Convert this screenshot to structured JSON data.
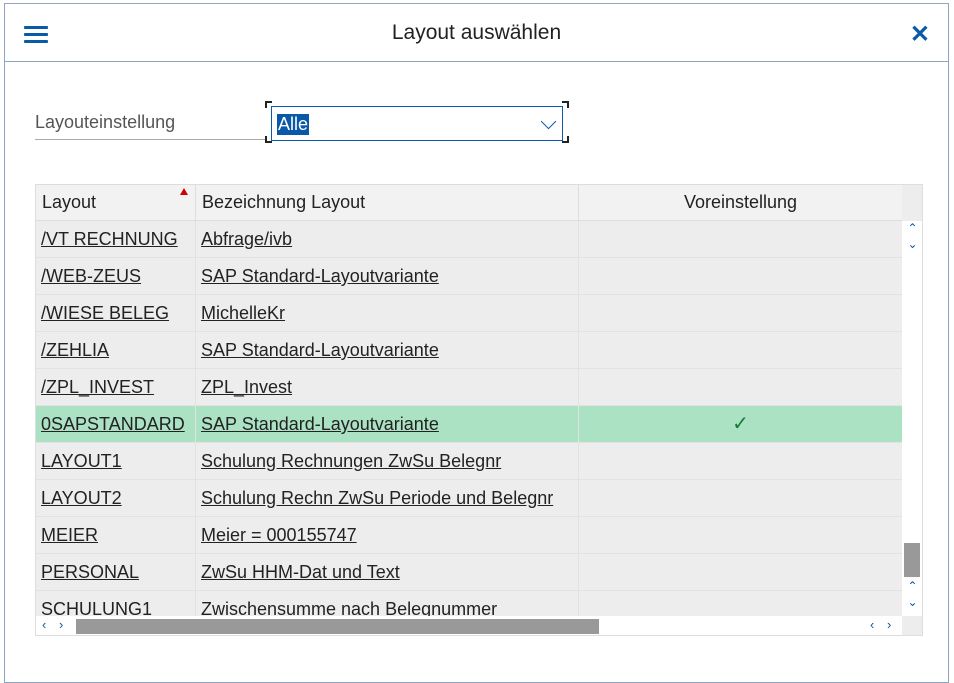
{
  "dialog": {
    "title": "Layout auswählen",
    "menu_icon": "hamburger-icon",
    "close_icon": "close-icon",
    "close_label": "✕"
  },
  "filter": {
    "label": "Layouteinstellung",
    "value": "Alle"
  },
  "table": {
    "columns": [
      "Layout",
      "Bezeichnung Layout",
      "Voreinstellung"
    ],
    "sort": {
      "column": "Layout",
      "direction": "ascending"
    },
    "rows": [
      {
        "layout": "/VT RECHNUNG",
        "name": "Abfrage/ivb",
        "default": ""
      },
      {
        "layout": "/WEB-ZEUS",
        "name": "SAP Standard-Layoutvariante",
        "default": ""
      },
      {
        "layout": "/WIESE BELEG",
        "name": "MichelleKr",
        "default": ""
      },
      {
        "layout": "/ZEHLIA",
        "name": "SAP Standard-Layoutvariante",
        "default": ""
      },
      {
        "layout": "/ZPL_INVEST",
        "name": "ZPL_Invest",
        "default": ""
      },
      {
        "layout": "0SAPSTANDARD",
        "name": "SAP Standard-Layoutvariante",
        "default": "✓",
        "selected": true
      },
      {
        "layout": "LAYOUT1",
        "name": "Schulung Rechnungen ZwSu Belegnr",
        "default": ""
      },
      {
        "layout": "LAYOUT2",
        "name": "Schulung Rechn ZwSu Periode und Belegnr",
        "default": ""
      },
      {
        "layout": "MEIER",
        "name": "Meier = 000155747",
        "default": ""
      },
      {
        "layout": "PERSONAL",
        "name": "ZwSu HHM-Dat und Text",
        "default": ""
      },
      {
        "layout": "SCHULUNG1",
        "name": "Zwischensumme nach Belegnummer",
        "default": ""
      }
    ]
  },
  "colors": {
    "accent": "#0a5aa8",
    "selected_row": "#abe2c4",
    "sort_indicator": "#cc0000"
  }
}
